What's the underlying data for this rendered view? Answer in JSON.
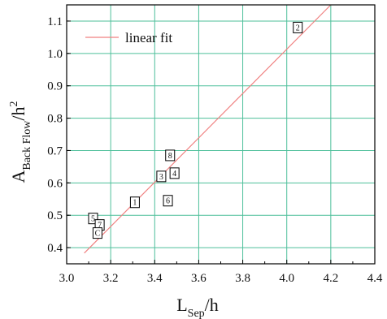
{
  "chart_data": {
    "type": "scatter",
    "title": "",
    "xlabel": {
      "main": "L",
      "sub": "Sep",
      "suffix": "/h"
    },
    "ylabel": {
      "main": "A",
      "sub": "Back Flow",
      "suffix": "/h",
      "sup": "2"
    },
    "xlim": [
      3.0,
      4.4
    ],
    "ylim": [
      0.35,
      1.15
    ],
    "xticks": [
      "3.0",
      "3.2",
      "3.4",
      "3.6",
      "3.8",
      "4.0",
      "4.2",
      "4.4"
    ],
    "yticks": [
      "0.4",
      "0.5",
      "0.6",
      "0.7",
      "0.8",
      "0.9",
      "1.0",
      "1.1"
    ],
    "xtick_values": [
      3.0,
      3.2,
      3.4,
      3.6,
      3.8,
      4.0,
      4.2,
      4.4
    ],
    "ytick_values": [
      0.4,
      0.5,
      0.6,
      0.7,
      0.8,
      0.9,
      1.0,
      1.1
    ],
    "grid": true,
    "grid_color": "#4dbf9a",
    "points": [
      {
        "label": "1",
        "x": 3.31,
        "y": 0.54
      },
      {
        "label": "2",
        "x": 4.05,
        "y": 1.08
      },
      {
        "label": "3",
        "x": 3.43,
        "y": 0.62
      },
      {
        "label": "4",
        "x": 3.49,
        "y": 0.63
      },
      {
        "label": "5",
        "x": 3.12,
        "y": 0.49
      },
      {
        "label": "6",
        "x": 3.46,
        "y": 0.545
      },
      {
        "label": "7",
        "x": 3.15,
        "y": 0.47
      },
      {
        "label": "8",
        "x": 3.47,
        "y": 0.685
      },
      {
        "label": "C",
        "x": 3.14,
        "y": 0.445
      }
    ],
    "fit_line": {
      "name": "linear fit",
      "color": "#f08080",
      "x": [
        3.08,
        4.2
      ],
      "y": [
        0.383,
        1.15
      ]
    },
    "legend": {
      "position": "top-left",
      "entries": [
        "linear fit"
      ]
    }
  }
}
